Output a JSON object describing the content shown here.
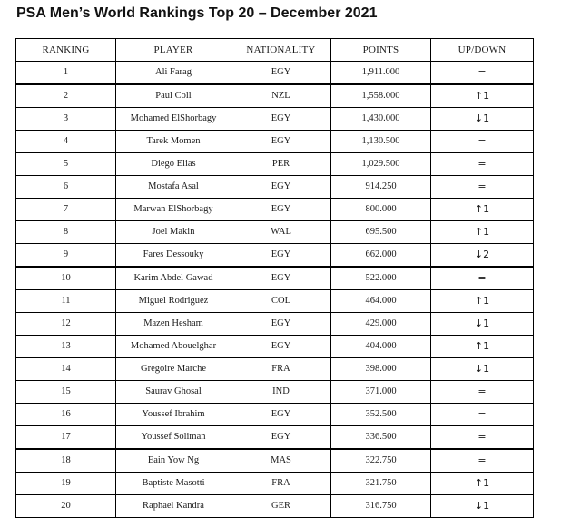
{
  "title": "PSA Men’s World Rankings Top 20 – December 2021",
  "table": {
    "headers": [
      "RANKING",
      "PLAYER",
      "NATIONALITY",
      "POINTS",
      "UP/DOWN"
    ],
    "rows": [
      {
        "rank": "1",
        "player": "Ali Farag",
        "nationality": "EGY",
        "points": "1,911.000",
        "movement": "="
      },
      {
        "rank": "2",
        "player": "Paul Coll",
        "nationality": "NZL",
        "points": "1,558.000",
        "movement": "↑1"
      },
      {
        "rank": "3",
        "player": "Mohamed ElShorbagy",
        "nationality": "EGY",
        "points": "1,430.000",
        "movement": "↓1"
      },
      {
        "rank": "4",
        "player": "Tarek Momen",
        "nationality": "EGY",
        "points": "1,130.500",
        "movement": "="
      },
      {
        "rank": "5",
        "player": "Diego Elias",
        "nationality": "PER",
        "points": "1,029.500",
        "movement": "="
      },
      {
        "rank": "6",
        "player": "Mostafa Asal",
        "nationality": "EGY",
        "points": "914.250",
        "movement": "="
      },
      {
        "rank": "7",
        "player": "Marwan ElShorbagy",
        "nationality": "EGY",
        "points": "800.000",
        "movement": "↑1"
      },
      {
        "rank": "8",
        "player": "Joel Makin",
        "nationality": "WAL",
        "points": "695.500",
        "movement": "↑1"
      },
      {
        "rank": "9",
        "player": "Fares Dessouky",
        "nationality": "EGY",
        "points": "662.000",
        "movement": "↓2"
      },
      {
        "rank": "10",
        "player": "Karim Abdel Gawad",
        "nationality": "EGY",
        "points": "522.000",
        "movement": "="
      },
      {
        "rank": "11",
        "player": "Miguel Rodriguez",
        "nationality": "COL",
        "points": "464.000",
        "movement": "↑1"
      },
      {
        "rank": "12",
        "player": "Mazen Hesham",
        "nationality": "EGY",
        "points": "429.000",
        "movement": "↓1"
      },
      {
        "rank": "13",
        "player": "Mohamed Abouelghar",
        "nationality": "EGY",
        "points": "404.000",
        "movement": "↑1"
      },
      {
        "rank": "14",
        "player": "Gregoire Marche",
        "nationality": "FRA",
        "points": "398.000",
        "movement": "↓1"
      },
      {
        "rank": "15",
        "player": "Saurav Ghosal",
        "nationality": "IND",
        "points": "371.000",
        "movement": "="
      },
      {
        "rank": "16",
        "player": "Youssef Ibrahim",
        "nationality": "EGY",
        "points": "352.500",
        "movement": "="
      },
      {
        "rank": "17",
        "player": "Youssef Soliman",
        "nationality": "EGY",
        "points": "336.500",
        "movement": "="
      },
      {
        "rank": "18",
        "player": "Eain Yow Ng",
        "nationality": "MAS",
        "points": "322.750",
        "movement": "="
      },
      {
        "rank": "19",
        "player": "Baptiste Masotti",
        "nationality": "FRA",
        "points": "321.750",
        "movement": "↑1"
      },
      {
        "rank": "20",
        "player": "Raphael Kandra",
        "nationality": "GER",
        "points": "316.750",
        "movement": "↓1"
      }
    ]
  }
}
